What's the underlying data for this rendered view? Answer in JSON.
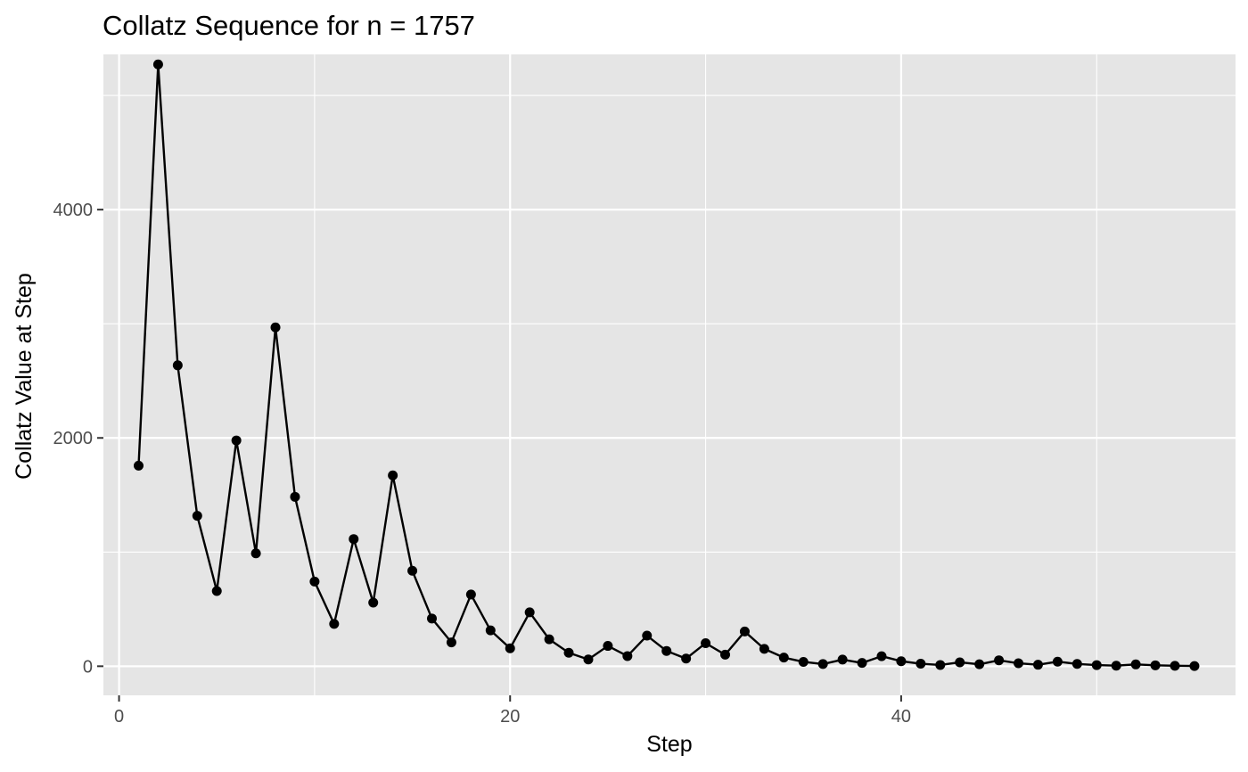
{
  "chart_data": {
    "type": "line",
    "title": "Collatz Sequence for n = 1757",
    "xlabel": "Step",
    "ylabel": "Collatz Value at Step",
    "xlim": [
      -0.8,
      57.1
    ],
    "ylim": [
      -255,
      5360
    ],
    "x_ticks": [
      0,
      20,
      40
    ],
    "x_tick_labels": [
      "0",
      "20",
      "40"
    ],
    "y_ticks": [
      0,
      2000,
      4000
    ],
    "y_tick_labels": [
      "0",
      "2000",
      "4000"
    ],
    "x_minor": [
      10,
      30,
      50
    ],
    "y_minor": [
      1000,
      3000,
      5000
    ],
    "grid": true,
    "colors": {
      "panel": "#e5e5e5",
      "grid": "#ffffff",
      "line": "#000000",
      "point": "#000000",
      "tick": "#333333"
    },
    "series": [
      {
        "x": [
          1,
          2,
          3,
          4,
          5,
          6,
          7,
          8,
          9,
          10,
          11,
          12,
          13,
          14,
          15,
          16,
          17,
          18,
          19,
          20,
          21,
          22,
          23,
          24,
          25,
          26,
          27,
          28,
          29,
          30,
          31,
          32,
          33,
          34,
          35,
          36,
          37,
          38,
          39,
          40,
          41,
          42,
          43,
          44,
          45,
          46,
          47,
          48,
          49,
          50,
          51,
          52,
          53,
          54,
          55
        ],
        "y": [
          1757,
          5272,
          2636,
          1318,
          659,
          1978,
          989,
          2968,
          1484,
          742,
          371,
          1114,
          557,
          1672,
          836,
          418,
          209,
          628,
          314,
          157,
          472,
          236,
          118,
          59,
          178,
          89,
          268,
          134,
          67,
          202,
          101,
          304,
          152,
          76,
          38,
          19,
          58,
          29,
          88,
          44,
          22,
          11,
          34,
          17,
          52,
          26,
          13,
          40,
          20,
          10,
          5,
          16,
          8,
          4,
          2
        ]
      }
    ]
  }
}
